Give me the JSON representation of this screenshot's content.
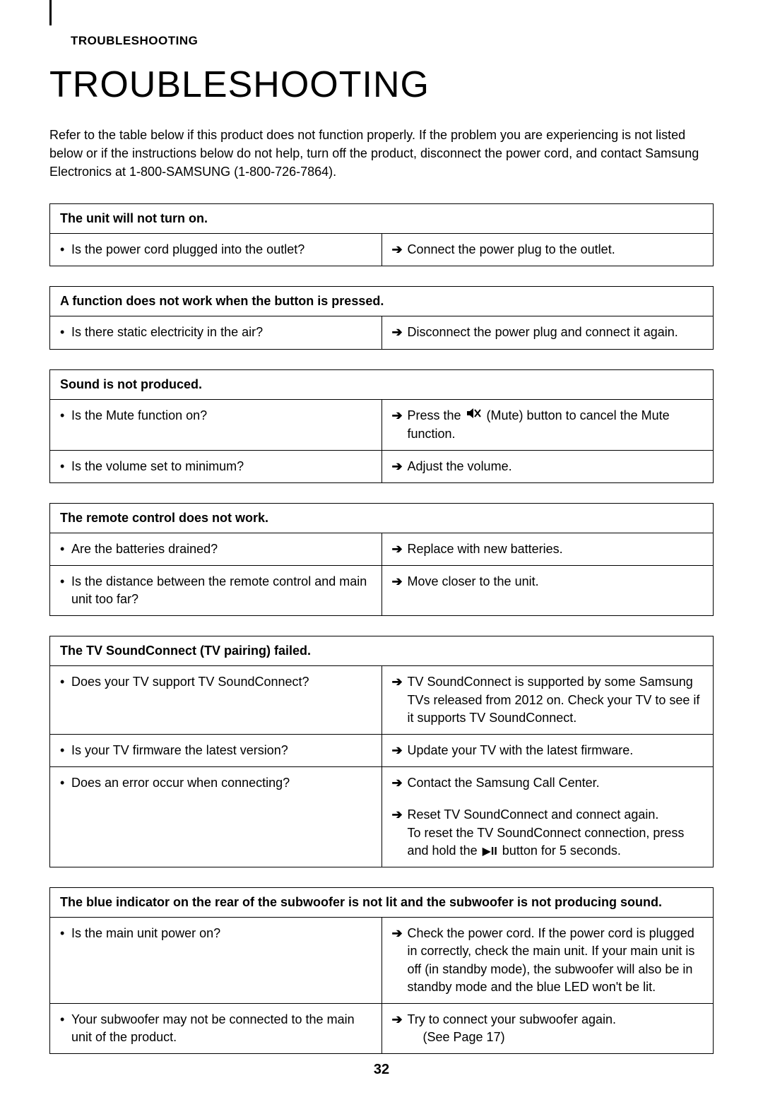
{
  "header": {
    "tag": "TROUBLESHOOTING",
    "title": "TROUBLESHOOTING",
    "intro": "Refer to the table below if this product does not function properly. If the problem you are experiencing is not listed below or if the instructions below do not help, turn off the product, disconnect the power cord, and contact Samsung Electronics at 1-800-SAMSUNG (1-800-726-7864)."
  },
  "sections": [
    {
      "heading": "The unit will not turn on.",
      "rows": [
        {
          "q": "Is the power cord plugged into the outlet?",
          "a": [
            {
              "text": "Connect the power plug to the outlet."
            }
          ]
        }
      ]
    },
    {
      "heading": "A function does not work when the button is pressed.",
      "rows": [
        {
          "q": "Is there static electricity in the air?",
          "a": [
            {
              "text": "Disconnect the power plug and connect it again."
            }
          ]
        }
      ]
    },
    {
      "heading": "Sound is not produced.",
      "rows": [
        {
          "q": "Is the Mute function on?",
          "a": [
            {
              "parts": [
                "Press the ",
                {
                  "icon": "mute"
                },
                " (Mute) button to cancel the Mute function."
              ]
            }
          ]
        },
        {
          "q": "Is the volume set to minimum?",
          "a": [
            {
              "text": "Adjust the volume."
            }
          ]
        }
      ]
    },
    {
      "heading": "The remote control does not work.",
      "rows": [
        {
          "q": "Are the batteries drained?",
          "a": [
            {
              "text": "Replace with new batteries."
            }
          ]
        },
        {
          "q": "Is the distance between the remote control and main unit too far?",
          "a": [
            {
              "text": "Move closer to the unit."
            }
          ]
        }
      ]
    },
    {
      "heading": "The TV SoundConnect (TV pairing) failed.",
      "rows": [
        {
          "q": "Does your TV support TV SoundConnect?",
          "a": [
            {
              "text": "TV SoundConnect is supported by some Samsung TVs released from 2012 on. Check your TV to see if it supports TV SoundConnect."
            }
          ]
        },
        {
          "q": "Is your TV firmware the latest version?",
          "a": [
            {
              "text": "Update your TV with the latest firmware."
            }
          ]
        },
        {
          "q": "Does an error occur when connecting?",
          "a": [
            {
              "text": "Contact the Samsung Call Center."
            }
          ]
        },
        {
          "q": "",
          "a": [
            {
              "parts": [
                "Reset TV SoundConnect and connect again.\nTo reset the TV SoundConnect connection, press and hold the ",
                {
                  "icon": "play"
                },
                " button for 5 seconds."
              ]
            }
          ]
        }
      ]
    },
    {
      "heading": "The blue indicator on the rear of the subwoofer is not lit and the subwoofer is not producing sound.",
      "rows": [
        {
          "q": "Is the main unit power on?",
          "a": [
            {
              "text": "Check the power cord. If the power cord is plugged in correctly, check the main unit. If your main unit is off (in standby mode), the subwoofer will also be in standby mode and the blue LED won't be lit."
            }
          ]
        },
        {
          "q": "Your subwoofer may not be connected to the main unit of the product.",
          "a": [
            {
              "text": "Try to connect your subwoofer again.\n(See Page 17)"
            }
          ]
        }
      ]
    }
  ],
  "pageNumber": "32"
}
